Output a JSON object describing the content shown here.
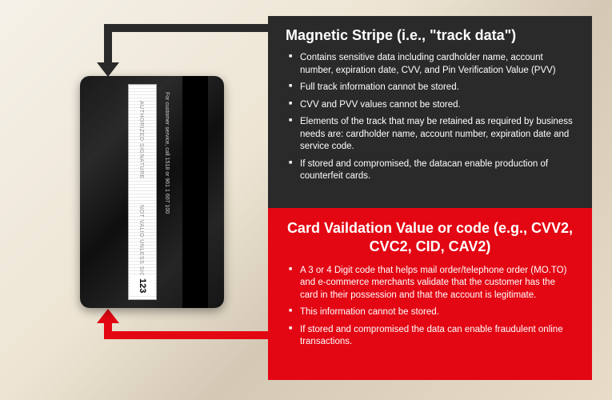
{
  "card": {
    "cvv": "123",
    "authorized": "AUTHORIZED SIGNATURE",
    "not_valid": "NOT VALID UNLESS SIGNED",
    "service": "For customer service, call 1518 or 961 1 607 100"
  },
  "dark_panel": {
    "title": "Magnetic Stripe (i.e., \"track data\")",
    "bg_color": "#2a2a2a",
    "bullets": [
      "Contains sensitive data including cardholder name, account number, expiration date, CVV, and Pin Verification Value (PVV)",
      "Full track information cannot be stored.",
      "CVV and PVV values cannot be stored.",
      "Elements of the track that may be retained as required by business needs are: cardholder name, account number, expiration date and service code.",
      "If stored and compromised, the datacan enable production of counterfeit cards."
    ]
  },
  "red_panel": {
    "title": "Card Vaildation Value or code (e.g., CVV2, CVC2, CID, CAV2)",
    "bg_color": "#e30613",
    "bullets": [
      "A 3 or 4 Digit code that helps mail order/telephone order (MO.TO) and e-commerce merchants validate that the customer has the card in their possession and that the account is legitimate.",
      "This information cannot be stored.",
      "If stored and compromised the data can enable fraudulent online transactions."
    ]
  }
}
